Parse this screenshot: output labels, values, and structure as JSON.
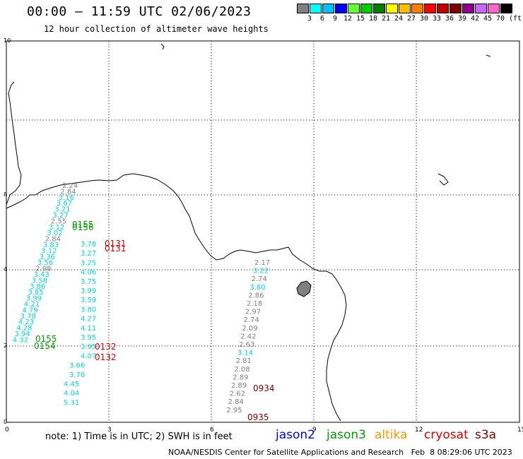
{
  "title": "00:00 — 11:59 UTC 02/06/2023",
  "subtitle": "12 hour collection of altimeter wave heights",
  "scale": {
    "colors": [
      "#808080",
      "#00ffff",
      "#00bfff",
      "#0000ff",
      "#66ff33",
      "#00cc00",
      "#008000",
      "#ffff00",
      "#ffbf00",
      "#ff8000",
      "#ff0000",
      "#c00000",
      "#800000",
      "#8b008b",
      "#cc66ff",
      "#ff66cc",
      "#000000"
    ],
    "labels": [
      "3",
      "6",
      "9",
      "12",
      "15",
      "18",
      "21",
      "24",
      "27",
      "30",
      "33",
      "36",
      "39",
      "42",
      "45",
      "70"
    ],
    "unit": "(ft)"
  },
  "axes": {
    "x_ticks": [
      "0",
      "3",
      "6",
      "9",
      "12",
      "15"
    ],
    "y_ticks": [
      "10",
      "8",
      "4",
      "2",
      "0"
    ]
  },
  "tracks": [
    {
      "sat": "jason3",
      "color": "#00a000",
      "time": "0155",
      "pos": [
        102,
        322
      ]
    },
    {
      "sat": "jason3",
      "color": "#00a000",
      "time": "0156",
      "pos": [
        102,
        326
      ]
    },
    {
      "sat": "cryosat",
      "color": "#e00000",
      "time": "0131",
      "pos": [
        148,
        349
      ]
    },
    {
      "sat": "cryosat",
      "color": "#e00000",
      "time": "0131",
      "pos": [
        148,
        356
      ]
    },
    {
      "sat": "jason3",
      "color": "#00a000",
      "time": "0155",
      "pos": [
        50,
        484
      ]
    },
    {
      "sat": "jason3",
      "color": "#00a000",
      "time": "0154",
      "pos": [
        48,
        494
      ]
    },
    {
      "sat": "cryosat",
      "color": "#e00000",
      "time": "0132",
      "pos": [
        134,
        495
      ]
    },
    {
      "sat": "cryosat",
      "color": "#e00000",
      "time": "0132",
      "pos": [
        134,
        510
      ]
    },
    {
      "sat": "s3a",
      "color": "#800000",
      "time": "0934",
      "pos": [
        358,
        554
      ]
    },
    {
      "sat": "s3a",
      "color": "#800000",
      "time": "0935",
      "pos": [
        350,
        595
      ]
    }
  ],
  "swh_values": {
    "track_a": [
      "2.24",
      "2.84",
      "3.16",
      "3.67",
      "3.21",
      "3.27",
      "2.55",
      "3.12",
      "3.02",
      "2.84",
      "3.83",
      "3.12",
      "3.36",
      "3.56",
      "2.98",
      "3.43",
      "3.58",
      "3.86",
      "3.85",
      "3.99",
      "4.21",
      "4.79",
      "3.78",
      "4.23",
      "4.28",
      "3.94",
      "4.32"
    ],
    "track_b": [
      "3.78",
      "3.27",
      "3.25",
      "4.06",
      "3.75",
      "3.99",
      "3.59",
      "3.80",
      "4.27",
      "4.11",
      "3.95",
      "3.95",
      "4.07",
      "3.66",
      "3.76",
      "4.45",
      "4.04",
      "5.31"
    ],
    "track_c": [
      "2.17",
      "3.22",
      "2.74",
      "3.80",
      "2.86",
      "2.18",
      "2.97",
      "2.74",
      "2.09",
      "2.42",
      "2.63",
      "3.14",
      "2.81",
      "2.08",
      "2.89",
      "2.89",
      "2.62",
      "2.84",
      "2.95"
    ]
  },
  "footer": {
    "note": "note: 1) Time is in UTC; 2) SWH is in feet",
    "satellites": [
      {
        "name": "jason2",
        "color": "#0000ff"
      },
      {
        "name": "jason3",
        "color": "#00a000"
      },
      {
        "name": "altika",
        "color": "#ff9900"
      },
      {
        "name": "cryosat",
        "color": "#e00000"
      },
      {
        "name": "s3a",
        "color": "#800000"
      }
    ],
    "credit": "NOAA/NESDIS Center for Satellite Applications and Research   Feb  8 08:29:06 UTC 2023"
  }
}
